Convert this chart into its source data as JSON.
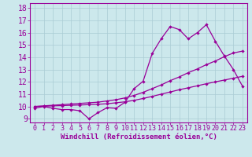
{
  "xlabel": "Windchill (Refroidissement éolien,°C)",
  "bg_color": "#cce8ec",
  "grid_color": "#aaccd4",
  "line_color": "#990099",
  "xlim": [
    -0.5,
    23.5
  ],
  "ylim": [
    8.7,
    18.4
  ],
  "xticks": [
    0,
    1,
    2,
    3,
    4,
    5,
    6,
    7,
    8,
    9,
    10,
    11,
    12,
    13,
    14,
    15,
    16,
    17,
    18,
    19,
    20,
    21,
    22,
    23
  ],
  "yticks": [
    9,
    10,
    11,
    12,
    13,
    14,
    15,
    16,
    17,
    18
  ],
  "line1_x": [
    0,
    1,
    2,
    3,
    4,
    5,
    6,
    7,
    8,
    9,
    10,
    11,
    12,
    13,
    14,
    15,
    16,
    17,
    18,
    19,
    20,
    21,
    22,
    23
  ],
  "line1_y": [
    9.85,
    10.0,
    9.85,
    9.75,
    9.75,
    9.65,
    9.0,
    9.5,
    9.9,
    9.85,
    10.35,
    11.45,
    12.05,
    14.3,
    15.5,
    16.5,
    16.25,
    15.5,
    16.0,
    16.65,
    15.3,
    14.1,
    13.0,
    11.65
  ],
  "line2_x": [
    0,
    1,
    2,
    3,
    4,
    5,
    6,
    7,
    8,
    9,
    10,
    11,
    12,
    13,
    14,
    15,
    16,
    17,
    18,
    19,
    20,
    21,
    22,
    23
  ],
  "line2_y": [
    10.0,
    10.05,
    10.1,
    10.15,
    10.2,
    10.25,
    10.3,
    10.35,
    10.45,
    10.55,
    10.7,
    10.9,
    11.15,
    11.45,
    11.75,
    12.1,
    12.4,
    12.75,
    13.05,
    13.4,
    13.7,
    14.05,
    14.35,
    14.5
  ],
  "line3_x": [
    0,
    1,
    2,
    3,
    4,
    5,
    6,
    7,
    8,
    9,
    10,
    11,
    12,
    13,
    14,
    15,
    16,
    17,
    18,
    19,
    20,
    21,
    22,
    23
  ],
  "line3_y": [
    10.0,
    10.02,
    10.05,
    10.07,
    10.1,
    10.12,
    10.15,
    10.18,
    10.22,
    10.3,
    10.38,
    10.5,
    10.65,
    10.82,
    11.0,
    11.18,
    11.36,
    11.52,
    11.68,
    11.85,
    12.0,
    12.15,
    12.3,
    12.45
  ],
  "xlabel_fontsize": 6.5,
  "ytick_fontsize": 7,
  "xtick_fontsize": 6
}
